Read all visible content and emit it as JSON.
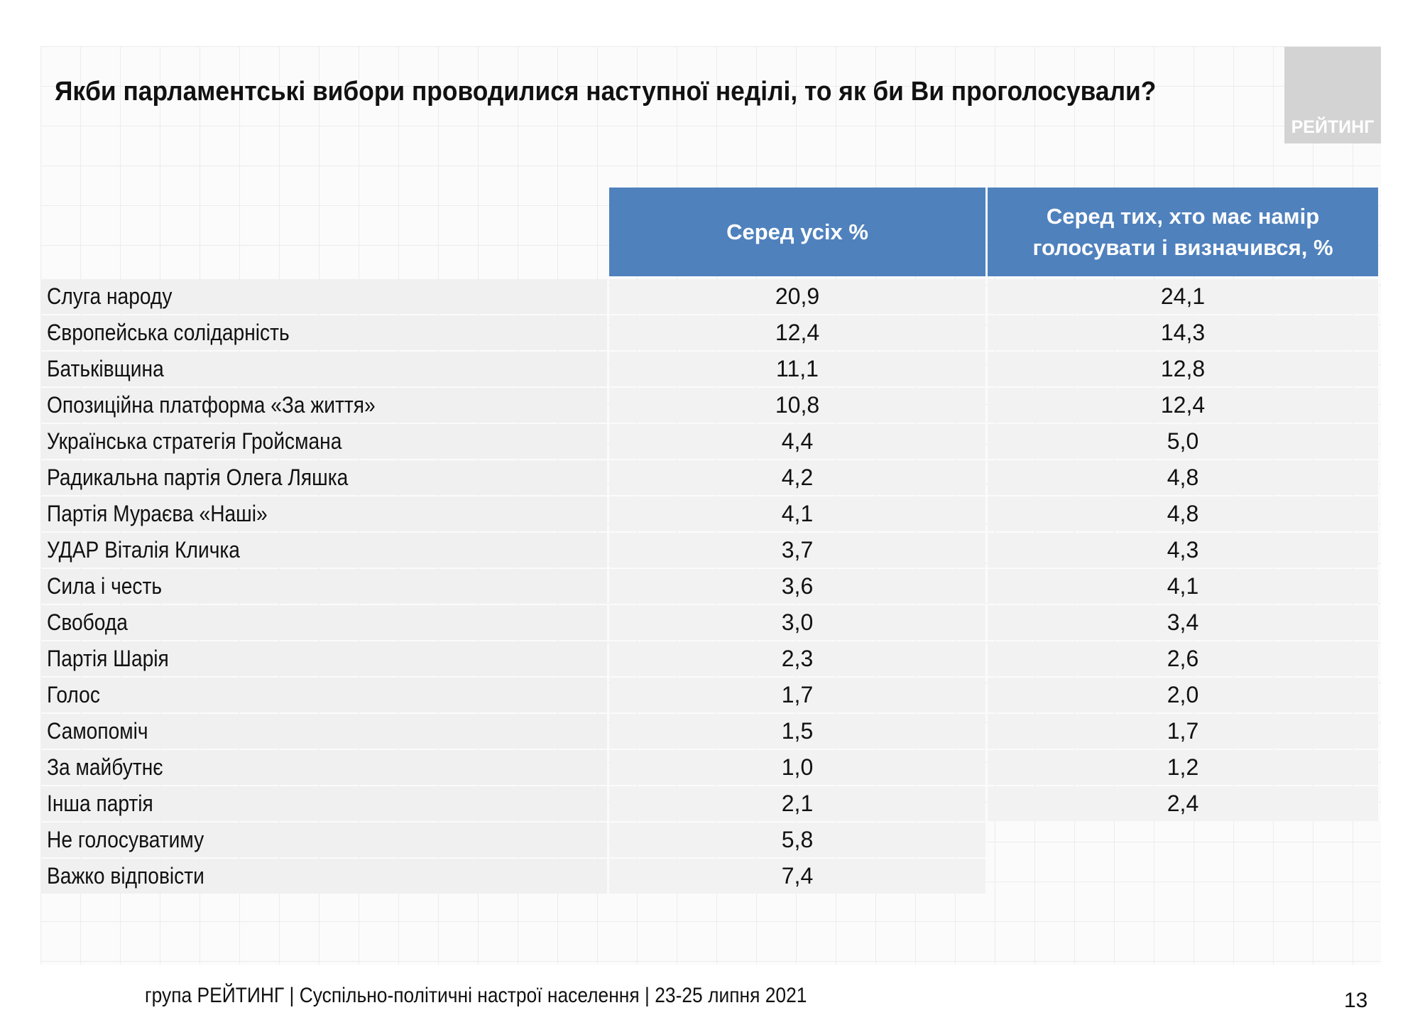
{
  "title": "Якби парламентські вибори проводилися наступної неділі, то як би Ви проголосували?",
  "logo_text": "РЕЙТИНГ",
  "columns": [
    "Серед усіх %",
    "Серед тих, хто має намір голосувати і визначився, %"
  ],
  "rows": [
    {
      "label": "Слуга народу",
      "all": "20,9",
      "decided": "24,1"
    },
    {
      "label": "Європейська солідарність",
      "all": "12,4",
      "decided": "14,3"
    },
    {
      "label": "Батьківщина",
      "all": "11,1",
      "decided": "12,8"
    },
    {
      "label": "Опозиційна платформа «За життя»",
      "all": "10,8",
      "decided": "12,4"
    },
    {
      "label": "Українська стратегія Гройсмана",
      "all": "4,4",
      "decided": "5,0"
    },
    {
      "label": "Радикальна партія Олега Ляшка",
      "all": "4,2",
      "decided": "4,8"
    },
    {
      "label": "Партія Мураєва «Наші»",
      "all": "4,1",
      "decided": "4,8"
    },
    {
      "label": "УДАР Віталія Кличка",
      "all": "3,7",
      "decided": "4,3"
    },
    {
      "label": "Сила і честь",
      "all": "3,6",
      "decided": "4,1"
    },
    {
      "label": "Свобода",
      "all": "3,0",
      "decided": "3,4"
    },
    {
      "label": "Партія Шарія",
      "all": "2,3",
      "decided": "2,6"
    },
    {
      "label": "Голос",
      "all": "1,7",
      "decided": "2,0"
    },
    {
      "label": "Самопоміч",
      "all": "1,5",
      "decided": "1,7"
    },
    {
      "label": "За майбутнє",
      "all": "1,0",
      "decided": "1,2"
    },
    {
      "label": "Інша партія",
      "all": "2,1",
      "decided": "2,4"
    },
    {
      "label": "Не голосуватиму",
      "all": "5,8"
    },
    {
      "label": "Важко відповісти",
      "all": "7,4"
    }
  ],
  "footer": "група РЕЙТИНГ | Суспільно-політичні настрої населення  | 23-25 липня 2021",
  "page_number": "13",
  "colors": {
    "header_bg": "#4f81bd",
    "row_bg": "#f0f0f0",
    "logo_bg": "#d3d3d3"
  }
}
